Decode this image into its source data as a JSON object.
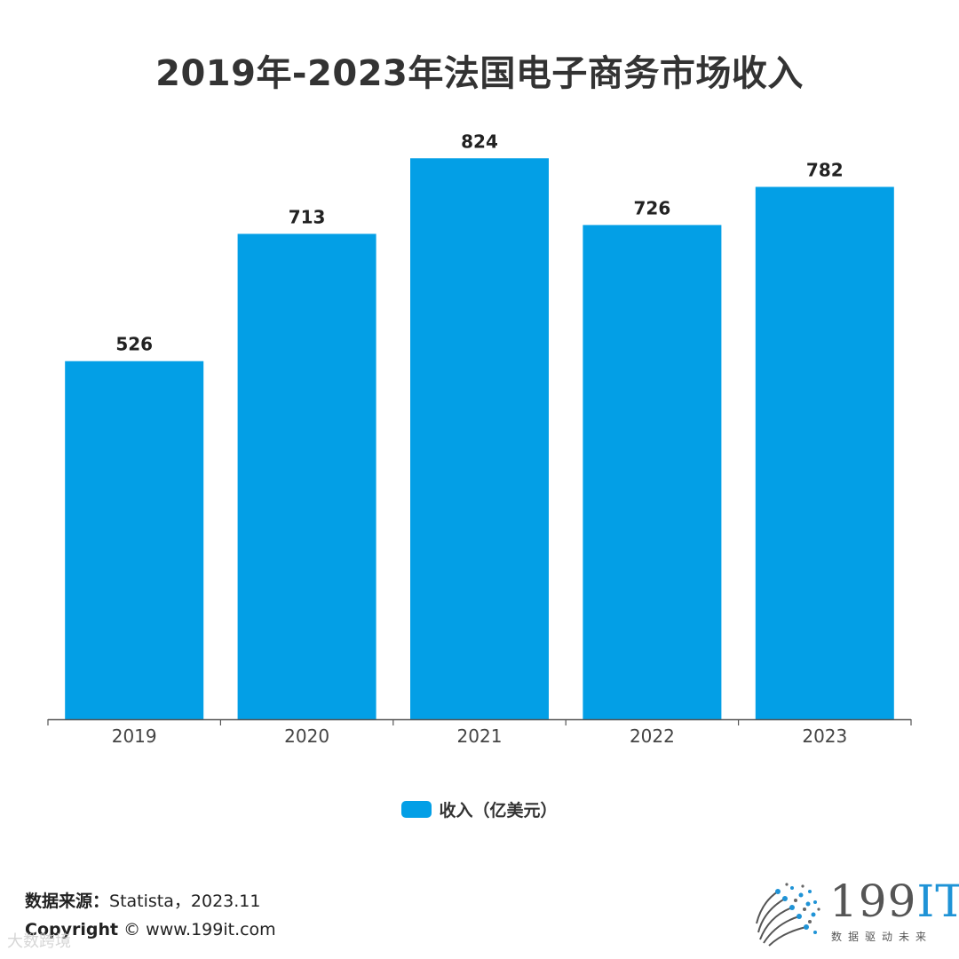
{
  "chart_data": {
    "type": "bar",
    "title": "2019年-2023年法国电子商务市场收入",
    "categories": [
      "2019",
      "2020",
      "2021",
      "2022",
      "2023"
    ],
    "series": [
      {
        "name": "收入（亿美元）",
        "values": [
          526,
          713,
          824,
          726,
          782
        ],
        "color": "#039fe6"
      }
    ],
    "xlabel": "",
    "ylabel": "",
    "ylim": [
      0,
      900
    ],
    "legend_position": "bottom-center",
    "grid": false
  },
  "footer": {
    "source_label": "数据来源：",
    "source_value": "Statista，2023.11",
    "copyright_label": "Copyright",
    "copyright_value": "© www.199it.com",
    "watermark": "大数跨境"
  },
  "logo": {
    "number": "199",
    "it": "IT",
    "tagline": "数据驱动未来",
    "icon": "dot-sphere-icon"
  },
  "colors": {
    "bar": "#039fe6",
    "title": "#333333",
    "axis": "#555555"
  }
}
